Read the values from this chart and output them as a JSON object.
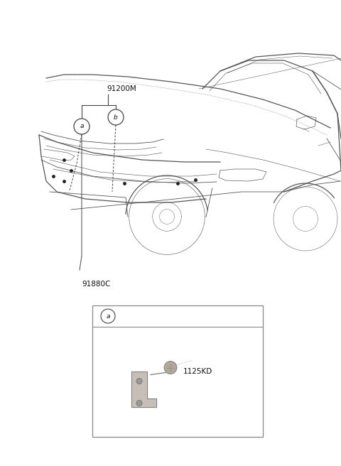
{
  "bg_color": "#ffffff",
  "fig_width": 4.8,
  "fig_height": 6.56,
  "dpi": 100,
  "label_91200M": "91200M",
  "label_91880C": "91880C",
  "label_1125KD": "1125KD",
  "label_a": "a",
  "label_b": "b",
  "line_color": "#444444",
  "car_line_color": "#555555",
  "text_color": "#111111",
  "font_size_labels": 7.5,
  "font_size_callout": 6.5,
  "font_size_inset": 7.5
}
